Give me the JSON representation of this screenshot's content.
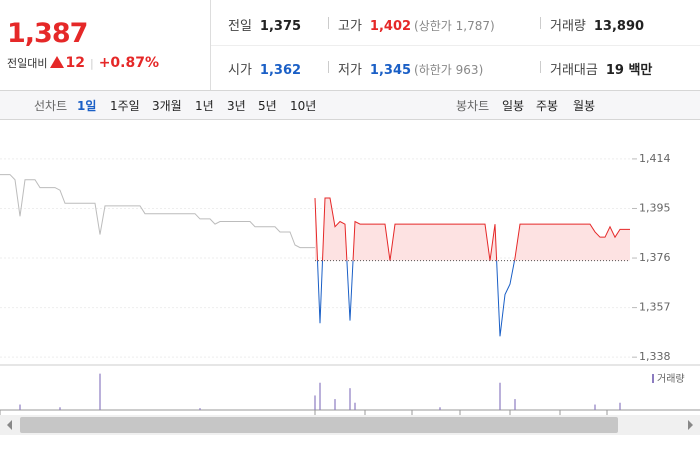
{
  "header": {
    "price": "1,387",
    "change_label": "전일대비",
    "change": "12",
    "change_rate": "+0.87%",
    "stats": [
      {
        "label": "전일",
        "value": "1,375",
        "color": "#222"
      },
      {
        "label": "고가",
        "value": "1,402",
        "color": "#e52828",
        "note": "(상한가 1,787)"
      },
      {
        "label": "거래량",
        "value": "13,890",
        "color": "#222"
      },
      {
        "label": "시가",
        "value": "1,362",
        "color": "#1a5fc6"
      },
      {
        "label": "저가",
        "value": "1,345",
        "color": "#1a5fc6",
        "note": "(하한가 963)"
      },
      {
        "label": "거래대금",
        "value": "19 백만",
        "color": "#222"
      }
    ]
  },
  "tabs": {
    "line_label": "선차트",
    "line_items": [
      "1일",
      "1주일",
      "3개월",
      "1년",
      "3년",
      "5년",
      "10년"
    ],
    "selected": 0,
    "candle_label": "봉차트",
    "candle_items": [
      "일봉",
      "주봉",
      "월봉"
    ]
  },
  "chart_data": {
    "type": "line",
    "ylim": [
      1335,
      1427
    ],
    "yticks": [
      {
        "value": 1414,
        "label": "1,414"
      },
      {
        "value": 1395,
        "label": "1,395"
      },
      {
        "value": 1376,
        "label": "1,376"
      },
      {
        "value": 1357,
        "label": "1,357"
      },
      {
        "value": 1338,
        "label": "1,338"
      }
    ],
    "baseline": 1375,
    "up_color": "#e52828",
    "down_color": "#1a5fc6",
    "fill_color": "#fde2e2",
    "series": [
      {
        "color": "#bcbcbc",
        "values": [
          1408,
          1408,
          1408,
          1406,
          1392,
          1406,
          1406,
          1406,
          1403,
          1403,
          1403,
          1403,
          1402,
          1397,
          1397,
          1397,
          1397,
          1397,
          1397,
          1397,
          1385,
          1396,
          1396,
          1396,
          1396,
          1396,
          1396,
          1396,
          1396,
          1393,
          1393,
          1393,
          1393,
          1393,
          1393,
          1393,
          1393,
          1393,
          1393,
          1393,
          1391,
          1391,
          1391,
          1389,
          1390,
          1390,
          1390,
          1390,
          1390,
          1390,
          1390,
          1388,
          1388,
          1388,
          1388,
          1388,
          1386,
          1386,
          1386,
          1381,
          1380,
          1380,
          1380,
          1380,
          null,
          null,
          null,
          null,
          null,
          null,
          null,
          null,
          null,
          null,
          null,
          null,
          null,
          null,
          null,
          null,
          null,
          null,
          null,
          null,
          null,
          null,
          null,
          null,
          null,
          null,
          null,
          null,
          null,
          null,
          null,
          null,
          null,
          null,
          null,
          null,
          null,
          null,
          null,
          null,
          null,
          null,
          null,
          null,
          null,
          null,
          null,
          null,
          null,
          null,
          null,
          null,
          null,
          null,
          null,
          null,
          null,
          null,
          null,
          null,
          null,
          null,
          null
        ]
      },
      {
        "color": "#e52828",
        "values": [
          null,
          null,
          null,
          null,
          null,
          null,
          null,
          null,
          null,
          null,
          null,
          null,
          null,
          null,
          null,
          null,
          null,
          null,
          null,
          null,
          null,
          null,
          null,
          null,
          null,
          null,
          null,
          null,
          null,
          null,
          null,
          null,
          null,
          null,
          null,
          null,
          null,
          null,
          null,
          null,
          null,
          null,
          null,
          null,
          null,
          null,
          null,
          null,
          null,
          null,
          null,
          null,
          null,
          null,
          null,
          null,
          null,
          null,
          null,
          null,
          null,
          null,
          null,
          1399,
          1351,
          1399,
          1399,
          1388,
          1390,
          1389,
          1352,
          1390,
          1389,
          1389,
          1389,
          1389,
          1389,
          1389,
          1375,
          1389,
          1389,
          1389,
          1389,
          1389,
          1389,
          1389,
          1389,
          1389,
          1389,
          1389,
          1389,
          1389,
          1389,
          1389,
          1389,
          1389,
          1389,
          1389,
          1375,
          1389,
          1346,
          1362,
          1366,
          1376,
          1389,
          1389,
          1389,
          1389,
          1389,
          1389,
          1389,
          1389,
          1389,
          1389,
          1389,
          1389,
          1389,
          1389,
          1389,
          1386,
          1384,
          1384,
          1388,
          1384,
          1387,
          1387,
          1387
        ]
      }
    ],
    "volume": {
      "name": "거래량",
      "color": "#8c7cc0",
      "ylim": [
        0,
        2200
      ],
      "values": [
        0,
        0,
        0,
        0,
        300,
        0,
        0,
        0,
        0,
        0,
        0,
        0,
        150,
        0,
        0,
        0,
        0,
        0,
        0,
        0,
        2000,
        0,
        0,
        0,
        0,
        0,
        0,
        0,
        0,
        0,
        0,
        0,
        0,
        0,
        0,
        0,
        0,
        0,
        0,
        0,
        100,
        0,
        0,
        0,
        0,
        0,
        0,
        0,
        0,
        0,
        0,
        0,
        0,
        0,
        0,
        0,
        0,
        0,
        0,
        0,
        0,
        0,
        0,
        800,
        1500,
        0,
        0,
        600,
        0,
        0,
        1200,
        400,
        0,
        0,
        0,
        0,
        0,
        0,
        0,
        0,
        0,
        0,
        0,
        0,
        0,
        0,
        0,
        0,
        150,
        0,
        0,
        0,
        0,
        0,
        0,
        0,
        0,
        0,
        0,
        0,
        1500,
        0,
        0,
        600,
        0,
        0,
        0,
        0,
        0,
        0,
        0,
        0,
        0,
        0,
        0,
        0,
        0,
        0,
        0,
        300,
        0,
        0,
        0,
        0,
        400,
        0,
        0
      ]
    }
  }
}
